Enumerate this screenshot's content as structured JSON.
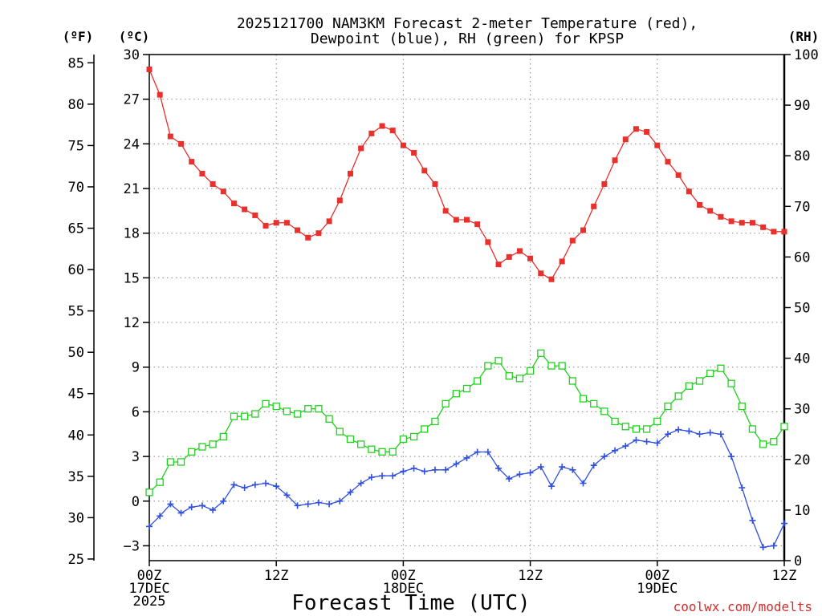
{
  "chart_data": {
    "type": "line",
    "title": "2025121700 NAM3KM Forecast 2-meter Temperature (red),",
    "subtitle": "Dewpoint (blue), RH (green) for KPSP",
    "xlabel": "Forecast Time (UTC)",
    "credit": "coolwx.com/modelts",
    "units": {
      "fahrenheit": "(ºF)",
      "celsius": "(ºC)",
      "rh": "(RH)"
    },
    "x_ticks": [
      {
        "hour": 0,
        "lines": [
          "00Z",
          "17DEC",
          "2025"
        ]
      },
      {
        "hour": 12,
        "lines": [
          "12Z"
        ]
      },
      {
        "hour": 24,
        "lines": [
          "00Z",
          "18DEC"
        ]
      },
      {
        "hour": 36,
        "lines": [
          "12Z"
        ]
      },
      {
        "hour": 48,
        "lines": [
          "00Z",
          "19DEC"
        ]
      },
      {
        "hour": 60,
        "lines": [
          "12Z"
        ]
      }
    ],
    "xlim": [
      0,
      60
    ],
    "celsius_ticks": [
      "30",
      "27",
      "24",
      "21",
      "18",
      "15",
      "12",
      "9",
      "6",
      "3",
      "0",
      "−3"
    ],
    "celsius_ylim": [
      -4,
      30
    ],
    "fahrenheit_ticks": [
      "85",
      "80",
      "75",
      "70",
      "65",
      "60",
      "55",
      "50",
      "45",
      "40",
      "35",
      "30",
      "25"
    ],
    "rh_ticks": [
      "100",
      "90",
      "80",
      "70",
      "60",
      "50",
      "40",
      "30",
      "20",
      "10",
      "0"
    ],
    "rh_ylim": [
      0,
      100
    ],
    "series": [
      {
        "name": "2-meter Temperature",
        "unit": "C",
        "color": "#e8302c",
        "marker": "filled-square",
        "values": [
          29.0,
          27.3,
          24.5,
          24.0,
          22.8,
          22.0,
          21.3,
          20.8,
          20.0,
          19.6,
          19.2,
          18.5,
          18.7,
          18.7,
          18.2,
          17.7,
          18.0,
          18.8,
          20.2,
          22.0,
          23.7,
          24.7,
          25.2,
          24.9,
          23.9,
          23.4,
          22.2,
          21.3,
          19.5,
          18.9,
          18.9,
          18.6,
          17.4,
          15.9,
          16.4,
          16.8,
          16.3,
          15.3,
          14.9,
          16.1,
          17.5,
          18.2,
          19.8,
          21.3,
          22.9,
          24.3,
          25.0,
          24.8,
          23.9,
          22.8,
          21.9,
          20.8,
          19.9,
          19.5,
          19.1,
          18.8,
          18.7,
          18.7,
          18.4,
          18.1,
          18.1
        ]
      },
      {
        "name": "Dewpoint",
        "unit": "C",
        "color": "#2f4fe0",
        "marker": "plus",
        "values": [
          -1.7,
          -1.0,
          -0.2,
          -0.8,
          -0.4,
          -0.3,
          -0.6,
          0.0,
          1.1,
          0.9,
          1.1,
          1.2,
          1.0,
          0.4,
          -0.3,
          -0.2,
          -0.1,
          -0.2,
          0.0,
          0.6,
          1.2,
          1.6,
          1.7,
          1.7,
          2.0,
          2.2,
          2.0,
          2.1,
          2.1,
          2.5,
          2.9,
          3.3,
          3.3,
          2.2,
          1.5,
          1.8,
          1.9,
          2.3,
          1.0,
          2.3,
          2.1,
          1.2,
          2.4,
          3.0,
          3.4,
          3.7,
          4.1,
          4.0,
          3.9,
          4.5,
          4.8,
          4.7,
          4.5,
          4.6,
          4.5,
          3.0,
          0.9,
          -1.3,
          -3.1,
          -3.0,
          -1.5
        ]
      },
      {
        "name": "RH",
        "unit": "%",
        "color": "#22d11f",
        "marker": "open-square",
        "values": [
          13.5,
          15.5,
          19.5,
          19.5,
          21.5,
          22.5,
          23.0,
          24.5,
          28.5,
          28.5,
          29.0,
          31.0,
          30.5,
          29.5,
          29.0,
          30.0,
          30.0,
          28.0,
          25.5,
          24.0,
          23.0,
          22.0,
          21.5,
          21.5,
          24.0,
          24.5,
          26.0,
          27.5,
          31.0,
          33.0,
          34.0,
          35.5,
          38.5,
          39.5,
          36.5,
          36.0,
          37.5,
          41.0,
          38.5,
          38.5,
          35.5,
          32.0,
          31.0,
          29.5,
          27.5,
          26.5,
          26.0,
          26.0,
          27.5,
          30.5,
          32.5,
          34.5,
          35.5,
          37.0,
          38.0,
          35.0,
          30.5,
          26.0,
          23.0,
          23.5,
          26.5
        ]
      }
    ]
  }
}
